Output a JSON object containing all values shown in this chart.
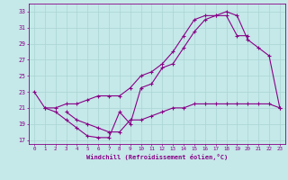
{
  "xlabel": "Windchill (Refroidissement éolien,°C)",
  "x_ticks": [
    0,
    1,
    2,
    3,
    4,
    5,
    6,
    7,
    8,
    9,
    10,
    11,
    12,
    13,
    14,
    15,
    16,
    17,
    18,
    19,
    20,
    21,
    22,
    23
  ],
  "y_ticks": [
    17,
    19,
    21,
    23,
    25,
    27,
    29,
    31,
    33
  ],
  "xlim": [
    -0.5,
    23.5
  ],
  "ylim": [
    16.5,
    34.0
  ],
  "bg_color": "#c5e8e8",
  "line_color": "#880088",
  "grid_color": "#aad4d4",
  "line1_x": [
    0,
    1,
    2,
    3,
    4,
    5,
    6,
    7,
    8,
    9,
    10,
    11,
    12,
    13,
    14,
    15,
    16,
    17,
    18,
    19,
    20,
    21,
    22,
    23
  ],
  "line1_y": [
    23,
    21,
    20.5,
    19.5,
    18.5,
    17.5,
    17.3,
    17.3,
    20.5,
    19.0,
    23.5,
    24.0,
    26.0,
    26.5,
    28.5,
    30.5,
    32.0,
    32.5,
    33.0,
    32.5,
    29.5,
    28.5,
    27.5,
    21.0
  ],
  "line2_x": [
    3,
    4,
    5,
    6,
    7,
    8,
    9,
    10,
    11,
    12,
    13,
    14,
    15,
    16,
    17,
    18,
    19,
    20,
    21,
    22,
    23
  ],
  "line2_y": [
    20.5,
    19.5,
    19.0,
    18.5,
    18.0,
    18.0,
    19.5,
    19.5,
    20.0,
    20.5,
    21.0,
    21.0,
    21.5,
    21.5,
    21.5,
    21.5,
    21.5,
    21.5,
    21.5,
    21.5,
    21.0
  ],
  "line3_x": [
    1,
    2,
    3,
    4,
    5,
    6,
    7,
    8,
    9,
    10,
    11,
    12,
    13,
    14,
    15,
    16,
    17,
    18,
    19,
    20
  ],
  "line3_y": [
    21.0,
    21.0,
    21.5,
    21.5,
    22.0,
    22.5,
    22.5,
    22.5,
    23.5,
    25.0,
    25.5,
    26.5,
    28.0,
    30.0,
    32.0,
    32.5,
    32.5,
    32.5,
    30.0,
    30.0
  ]
}
